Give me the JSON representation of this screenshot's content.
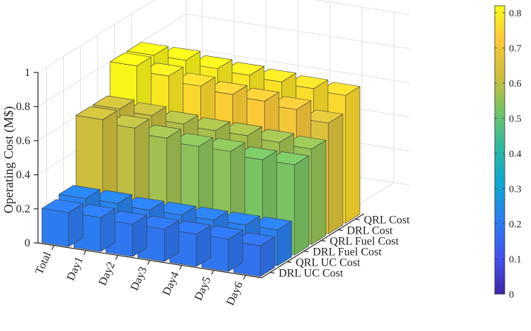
{
  "chart_data": {
    "type": "bar3d",
    "ylabel": "Operating Cost (M$)",
    "x_categories": [
      "Total",
      "Day1",
      "Day2",
      "Day3",
      "Day4",
      "Day5",
      "Day6"
    ],
    "depth_categories": [
      "DRL UC Cost",
      "QRL UC Cost",
      "DRL Fuel Cost",
      "QRL Fuel Cost",
      "DRL Cost",
      "QRL Cost"
    ],
    "zlim": [
      0,
      1
    ],
    "z_ticks": [
      "0",
      "0.2",
      "0.4",
      "0.6",
      "0.8",
      "1"
    ],
    "series": [
      {
        "name": "DRL UC Cost",
        "values": [
          0.2,
          0.2,
          0.19,
          0.19,
          0.19,
          0.19,
          0.18
        ]
      },
      {
        "name": "QRL UC Cost",
        "values": [
          0.22,
          0.22,
          0.21,
          0.21,
          0.21,
          0.21,
          0.21
        ]
      },
      {
        "name": "DRL Fuel Cost",
        "values": [
          0.62,
          0.6,
          0.57,
          0.55,
          0.55,
          0.53,
          0.53
        ]
      },
      {
        "name": "QRL Fuel Cost",
        "values": [
          0.62,
          0.61,
          0.59,
          0.58,
          0.58,
          0.57,
          0.56
        ]
      },
      {
        "name": "DRL Cost",
        "values": [
          0.81,
          0.78,
          0.75,
          0.73,
          0.72,
          0.7,
          0.65
        ]
      },
      {
        "name": "QRL Cost",
        "values": [
          0.81,
          0.81,
          0.79,
          0.78,
          0.77,
          0.76,
          0.75
        ]
      }
    ],
    "colorbar": {
      "range": [
        0,
        0.82
      ],
      "ticks": [
        "0",
        "0.1",
        "0.2",
        "0.3",
        "0.4",
        "0.5",
        "0.6",
        "0.7",
        "0.8"
      ],
      "colormap": "parula"
    },
    "grid": true
  }
}
